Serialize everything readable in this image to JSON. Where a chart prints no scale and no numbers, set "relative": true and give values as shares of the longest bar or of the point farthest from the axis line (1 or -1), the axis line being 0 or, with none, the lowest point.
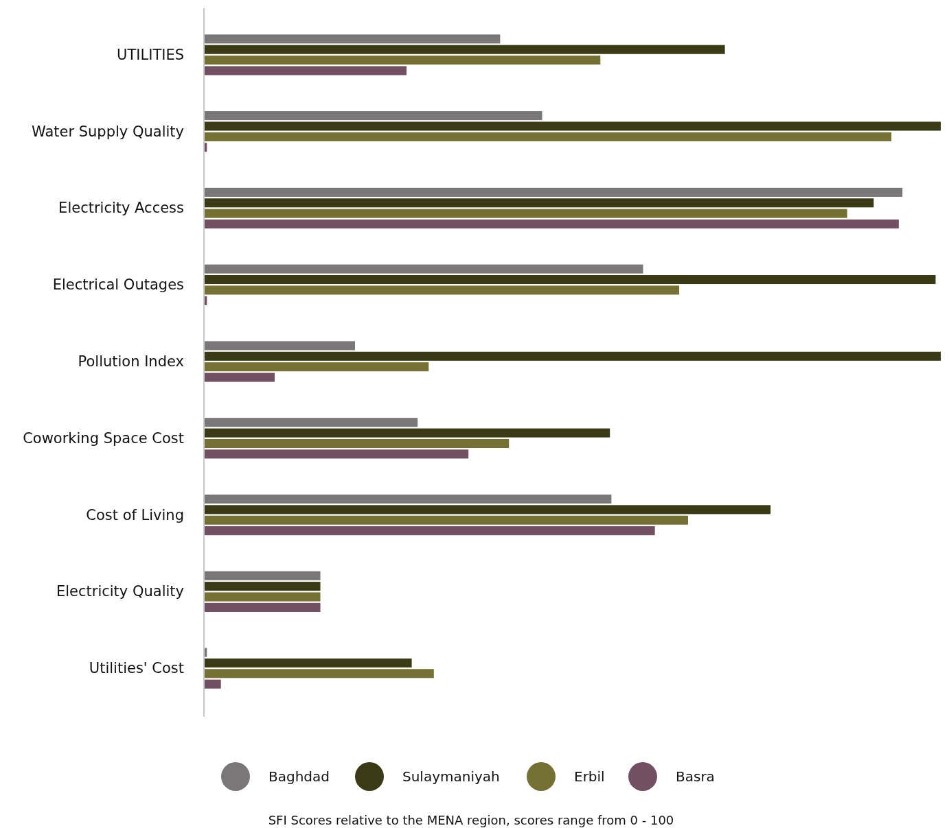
{
  "chart_data": {
    "type": "bar",
    "orientation": "horizontal",
    "relative": true,
    "categories": [
      "UTILITIES",
      "Water Supply Quality",
      "Electricity Access",
      "Electrical Outages",
      "Pollution Index",
      "Coworking Space Cost",
      "Cost of Living",
      "Electricity Quality",
      "Utilities' Cost"
    ],
    "series": [
      {
        "name": "Baghdad",
        "color": "#7a7778",
        "values": [
          0.402,
          0.459,
          0.948,
          0.596,
          0.205,
          0.29,
          0.553,
          0.158,
          0.004
        ]
      },
      {
        "name": "Sulaymaniyah",
        "color": "#3a3a16",
        "values": [
          0.707,
          1,
          0.909,
          0.993,
          1,
          0.551,
          0.769,
          0.158,
          0.282
        ]
      },
      {
        "name": "Erbil",
        "color": "#757033",
        "values": [
          0.538,
          0.933,
          0.873,
          0.645,
          0.305,
          0.414,
          0.657,
          0.158,
          0.312
        ]
      },
      {
        "name": "Basra",
        "color": "#724f62",
        "values": [
          0.275,
          0.004,
          0.943,
          0.004,
          0.096,
          0.359,
          0.612,
          0.158,
          0.023
        ]
      }
    ],
    "legend": "bottom",
    "annotations": [
      "SFI Scores relative to the MENA region, scores range from 0 - 100"
    ]
  }
}
